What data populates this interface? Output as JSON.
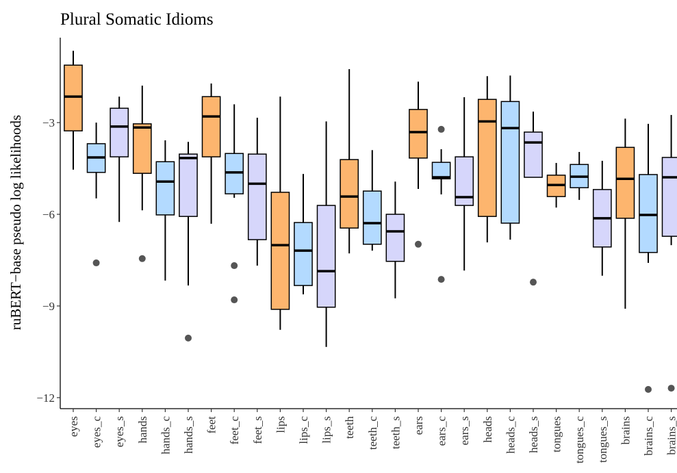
{
  "chart_data": {
    "type": "box",
    "title": "Plural Somatic Idioms",
    "y_label": "ruBERT−base pseudo log likelihoods",
    "categories": [
      "eyes",
      "eyes_c",
      "eyes_s",
      "hands",
      "hands_c",
      "hands_s",
      "feet",
      "feet_c",
      "feet_s",
      "lips",
      "lips_c",
      "lips_s",
      "teeth",
      "teeth_c",
      "teeth_s",
      "ears",
      "ears_c",
      "ears_s",
      "heads",
      "heads_c",
      "heads_s",
      "tongues",
      "tongues_c",
      "tongues_s",
      "brains",
      "brains_c",
      "brains_s"
    ],
    "colors": [
      "#fdb56e",
      "#b3daff",
      "#d6d6fb",
      "#fdb56e",
      "#b3daff",
      "#d6d6fb",
      "#fdb56e",
      "#b3daff",
      "#d6d6fb",
      "#fdb56e",
      "#b3daff",
      "#d6d6fb",
      "#fdb56e",
      "#b3daff",
      "#d6d6fb",
      "#fdb56e",
      "#b3daff",
      "#d6d6fb",
      "#fdb56e",
      "#b3daff",
      "#d6d6fb",
      "#fdb56e",
      "#b3daff",
      "#d6d6fb",
      "#fdb56e",
      "#b3daff",
      "#d6d6fb"
    ],
    "boxes": [
      {
        "low": -4.54,
        "q1": -3.27,
        "median": -2.15,
        "q3": -1.12,
        "high": -0.65,
        "outliers": []
      },
      {
        "low": -5.48,
        "q1": -4.63,
        "median": -4.14,
        "q3": -3.69,
        "high": -3.0,
        "outliers": [
          -7.59
        ]
      },
      {
        "low": -6.25,
        "q1": -4.12,
        "median": -3.13,
        "q3": -2.53,
        "high": -2.15,
        "outliers": []
      },
      {
        "low": -5.87,
        "q1": -4.66,
        "median": -3.16,
        "q3": -3.04,
        "high": -1.79,
        "outliers": [
          -7.45
        ]
      },
      {
        "low": -8.17,
        "q1": -6.02,
        "median": -4.93,
        "q3": -4.28,
        "high": -3.58,
        "outliers": []
      },
      {
        "low": -8.33,
        "q1": -6.07,
        "median": -4.16,
        "q3": -4.03,
        "high": -3.63,
        "outliers": [
          -10.05
        ]
      },
      {
        "low": -6.31,
        "q1": -4.12,
        "median": -2.8,
        "q3": -2.15,
        "high": -1.72,
        "outliers": []
      },
      {
        "low": -5.46,
        "q1": -5.33,
        "median": -4.63,
        "q3": -4.01,
        "high": -2.4,
        "outliers": [
          -7.68,
          -8.8
        ]
      },
      {
        "low": -7.68,
        "q1": -6.83,
        "median": -5.0,
        "q3": -4.03,
        "high": -2.84,
        "outliers": []
      },
      {
        "low": -9.78,
        "q1": -9.11,
        "median": -7.01,
        "q3": -5.28,
        "high": -2.15,
        "outliers": []
      },
      {
        "low": -8.62,
        "q1": -8.33,
        "median": -7.19,
        "q3": -6.27,
        "high": -4.68,
        "outliers": []
      },
      {
        "low": -10.34,
        "q1": -9.04,
        "median": -7.86,
        "q3": -5.71,
        "high": -2.96,
        "outliers": []
      },
      {
        "low": -7.28,
        "q1": -6.45,
        "median": -5.42,
        "q3": -4.21,
        "high": -1.25,
        "outliers": []
      },
      {
        "low": -7.19,
        "q1": -6.98,
        "median": -6.29,
        "q3": -5.24,
        "high": -3.9,
        "outliers": []
      },
      {
        "low": -8.75,
        "q1": -7.54,
        "median": -6.56,
        "q3": -6.0,
        "high": -4.93,
        "outliers": []
      },
      {
        "low": -5.17,
        "q1": -4.16,
        "median": -3.31,
        "q3": -2.57,
        "high": -1.66,
        "outliers": [
          -6.98
        ]
      },
      {
        "low": -5.35,
        "q1": -4.84,
        "median": -4.79,
        "q3": -4.3,
        "high": -3.87,
        "outliers": [
          -3.22,
          -8.13
        ]
      },
      {
        "low": -7.84,
        "q1": -5.71,
        "median": -5.44,
        "q3": -4.12,
        "high": -2.17,
        "outliers": []
      },
      {
        "low": -6.92,
        "q1": -6.07,
        "median": -2.96,
        "q3": -2.24,
        "high": -1.48,
        "outliers": []
      },
      {
        "low": -6.83,
        "q1": -6.29,
        "median": -3.18,
        "q3": -2.31,
        "high": -1.46,
        "outliers": []
      },
      {
        "low": -4.79,
        "q1": -4.79,
        "median": -3.65,
        "q3": -3.31,
        "high": -2.64,
        "outliers": [
          -8.22
        ]
      },
      {
        "low": -5.78,
        "q1": -5.42,
        "median": -5.04,
        "q3": -4.72,
        "high": -4.32,
        "outliers": []
      },
      {
        "low": -5.53,
        "q1": -5.13,
        "median": -4.77,
        "q3": -4.37,
        "high": -3.96,
        "outliers": []
      },
      {
        "low": -8.01,
        "q1": -7.07,
        "median": -6.13,
        "q3": -5.19,
        "high": -4.25,
        "outliers": []
      },
      {
        "low": -9.09,
        "q1": -6.13,
        "median": -4.84,
        "q3": -3.81,
        "high": -2.87,
        "outliers": []
      },
      {
        "low": -7.59,
        "q1": -7.25,
        "median": -6.02,
        "q3": -4.7,
        "high": -3.04,
        "outliers": [
          -11.73
        ]
      },
      {
        "low": -7.01,
        "q1": -6.72,
        "median": -4.79,
        "q3": -4.14,
        "high": -2.75,
        "outliers": [
          -11.69
        ]
      }
    ],
    "ylim": [
      -12.36,
      -0.22
    ],
    "yticks": [
      {
        "value": -3,
        "label": "−3"
      },
      {
        "value": -6,
        "label": "−6"
      },
      {
        "value": -9,
        "label": "−9"
      },
      {
        "value": -12,
        "label": "−12"
      }
    ],
    "grid": false
  }
}
